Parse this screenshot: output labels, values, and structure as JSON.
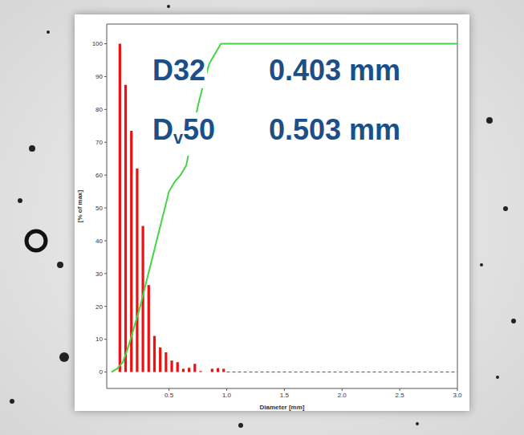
{
  "chart_data": {
    "type": "histogram",
    "xlabel": "Diameter [mm]",
    "ylabel": "[% of max]",
    "bins": [
      0.05,
      0.1,
      0.15,
      0.2,
      0.25,
      0.3,
      0.35,
      0.4,
      0.45,
      0.5,
      0.55,
      0.6,
      0.65,
      0.7,
      0.75,
      0.8,
      0.85,
      0.9,
      0.95,
      1.0
    ],
    "values": [
      100,
      87.5,
      73.5,
      62,
      44.5,
      26.5,
      11,
      7.5,
      6,
      3.5,
      3,
      1,
      1.3,
      2.5,
      0.3,
      0,
      1,
      1.2,
      1
    ],
    "color": "#ee1111",
    "cumulative": {
      "type": "line",
      "x": [
        0,
        0.05,
        0.1,
        0.15,
        0.2,
        0.25,
        0.3,
        0.35,
        0.4,
        0.45,
        0.5,
        0.55,
        0.6,
        0.65,
        0.7,
        0.75,
        0.8,
        0.85,
        0.9,
        0.95,
        3.0
      ],
      "values": [
        0,
        1,
        3,
        8,
        14,
        20,
        27,
        34,
        41,
        48,
        55,
        58,
        60,
        63,
        72,
        81,
        88,
        94,
        97,
        100,
        100
      ],
      "color": "#44d444"
    },
    "xlim": [
      -0.04,
      3.0
    ],
    "xticks": [
      0.5,
      {
        "value": 1,
        "label": "1.0"
      },
      1.5,
      {
        "value": 2,
        "label": "2.0"
      },
      2.5,
      {
        "value": 3,
        "label": "3.0"
      }
    ],
    "ylim": [
      -5,
      106
    ],
    "yticks": [
      0,
      10,
      20,
      30,
      40,
      50,
      60,
      70,
      80,
      90,
      100
    ],
    "annotations": [
      {
        "name": {
          "text": "D32"
        },
        "value": "0.403 mm"
      },
      {
        "name": {
          "text": "D",
          "sub": "v",
          "after": "50"
        },
        "value": "0.503 mm"
      }
    ]
  }
}
